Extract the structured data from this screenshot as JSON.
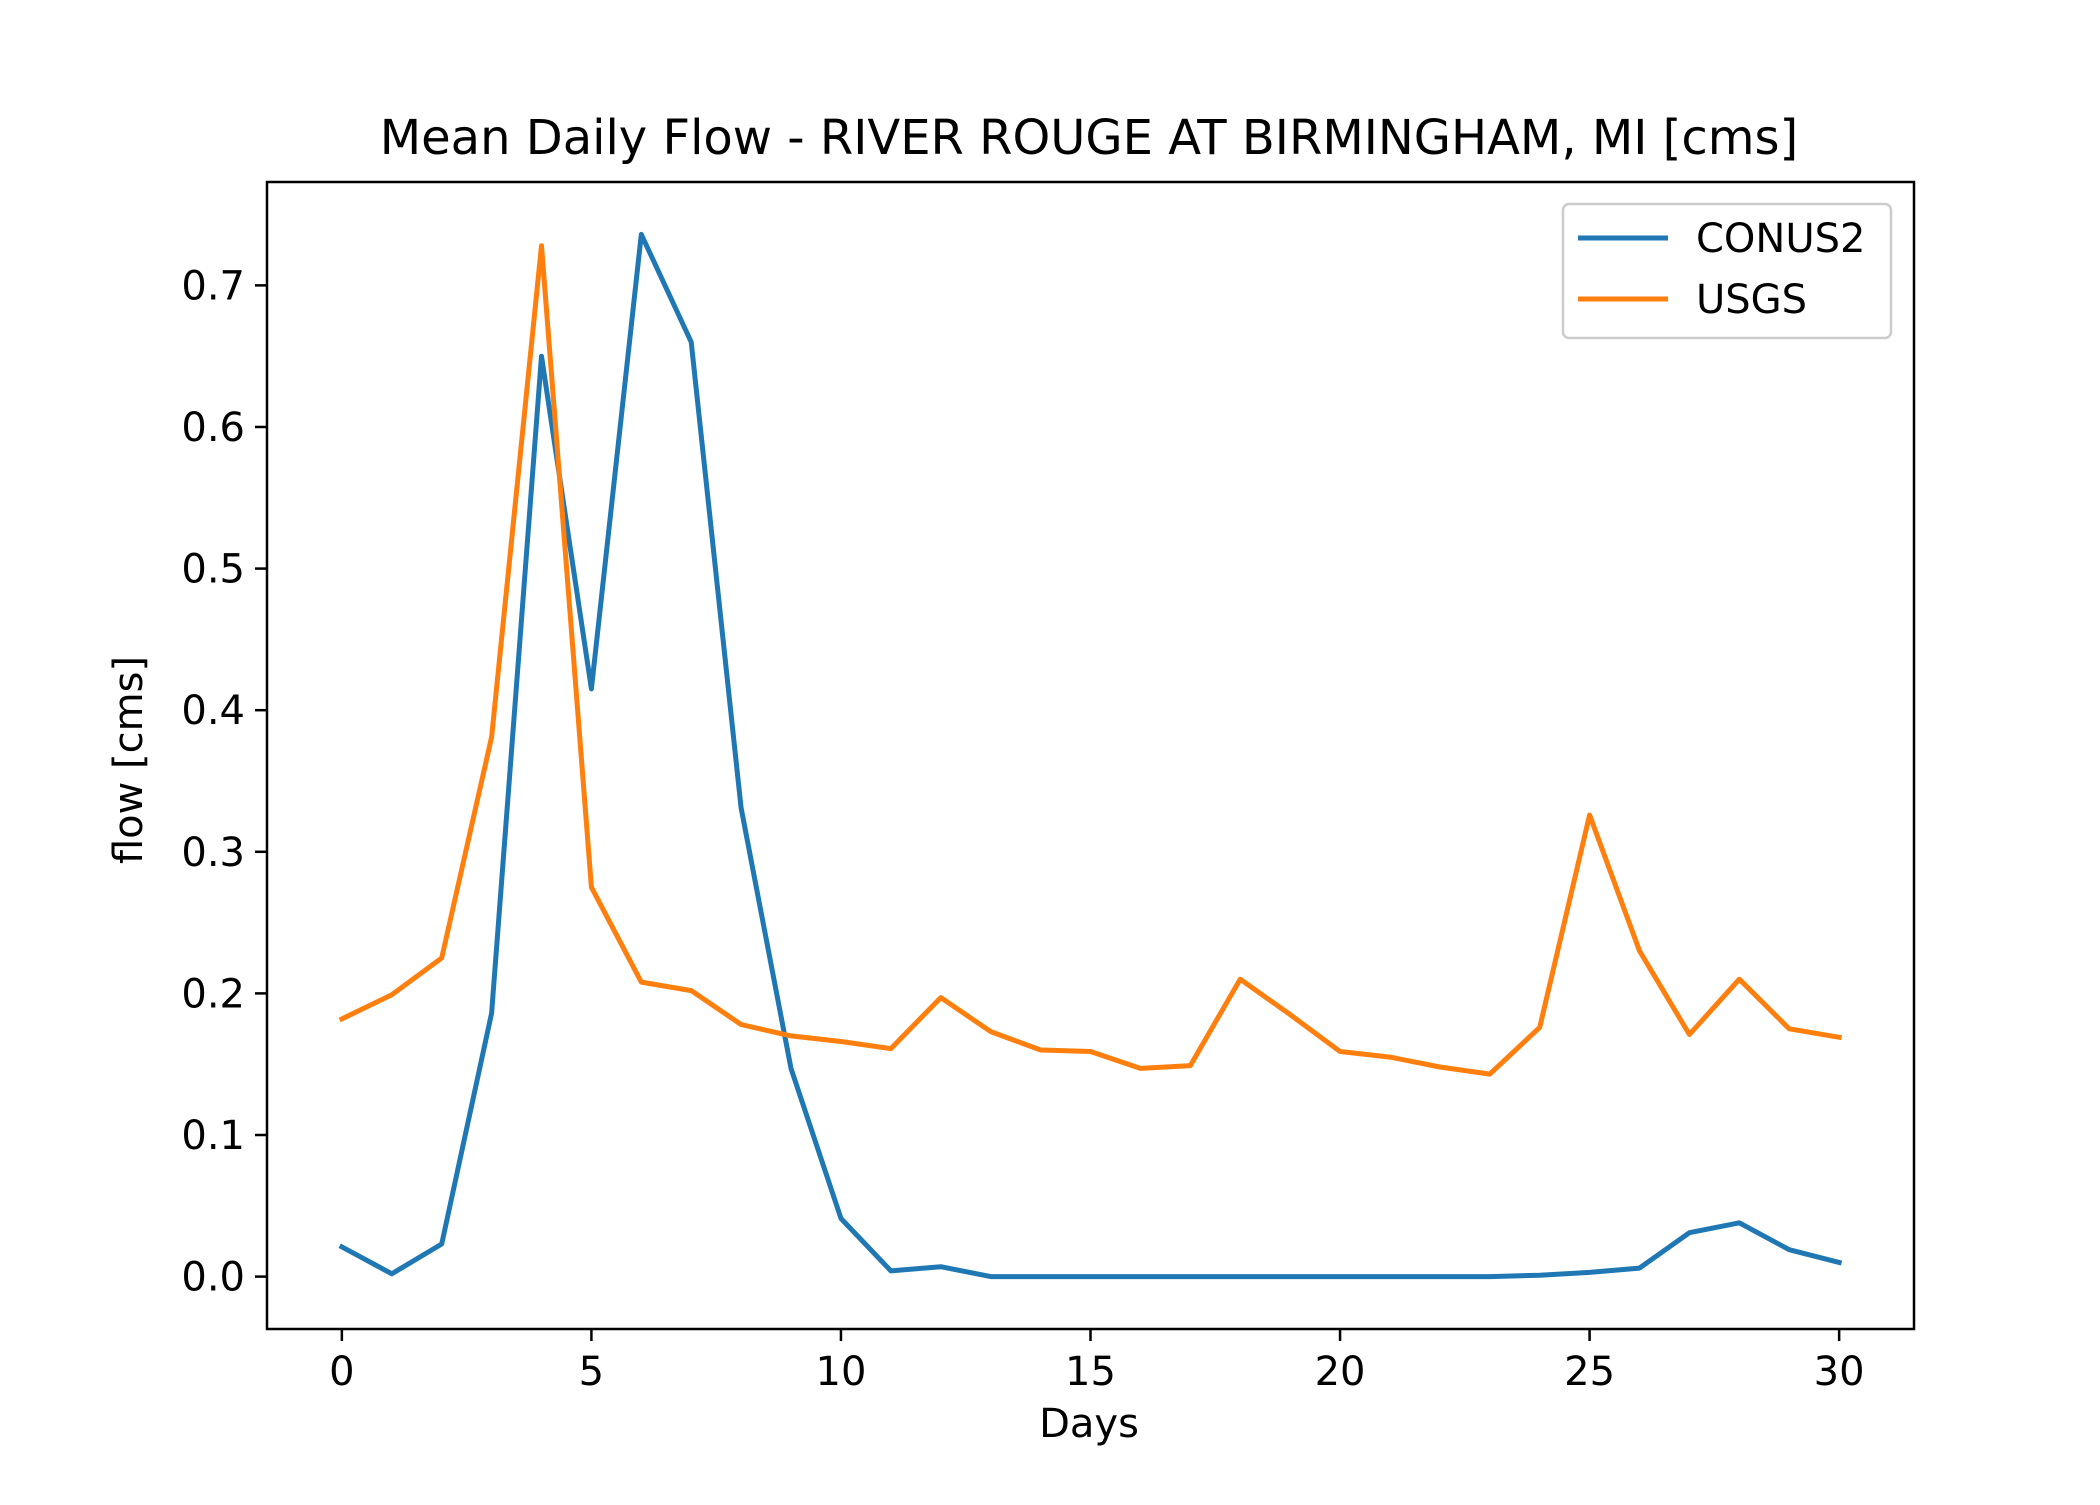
{
  "chart_data": {
    "type": "line",
    "title": "Mean Daily Flow - RIVER ROUGE AT BIRMINGHAM, MI [cms]",
    "xlabel": "Days",
    "ylabel": "flow [cms]",
    "xlim": [
      -1.5,
      31.5
    ],
    "ylim": [
      -0.037,
      0.773
    ],
    "xticks": [
      0,
      5,
      10,
      15,
      20,
      25,
      30
    ],
    "xtick_labels": [
      "0",
      "5",
      "10",
      "15",
      "20",
      "25",
      "30"
    ],
    "yticks": [
      0.0,
      0.1,
      0.2,
      0.3,
      0.4,
      0.5,
      0.6,
      0.7
    ],
    "ytick_labels": [
      "0.0",
      "0.1",
      "0.2",
      "0.3",
      "0.4",
      "0.5",
      "0.6",
      "0.7"
    ],
    "grid": false,
    "legend_position": "top-right",
    "x": [
      0,
      1,
      2,
      3,
      4,
      5,
      6,
      7,
      8,
      9,
      10,
      11,
      12,
      13,
      14,
      15,
      16,
      17,
      18,
      19,
      20,
      21,
      22,
      23,
      24,
      25,
      26,
      27,
      28,
      29,
      30
    ],
    "series": [
      {
        "name": "CONUS2",
        "color": "#1f77b4",
        "values": [
          0.021,
          0.002,
          0.023,
          0.186,
          0.65,
          0.415,
          0.736,
          0.66,
          0.331,
          0.147,
          0.041,
          0.004,
          0.007,
          0.0,
          0.0,
          0.0,
          0.0,
          0.0,
          0.0,
          0.0,
          0.0,
          0.0,
          0.0,
          0.0,
          0.001,
          0.003,
          0.006,
          0.031,
          0.038,
          0.019,
          0.01
        ]
      },
      {
        "name": "USGS",
        "color": "#ff7f0e",
        "values": [
          0.182,
          0.199,
          0.225,
          0.381,
          0.728,
          0.275,
          0.208,
          0.202,
          0.178,
          0.17,
          0.166,
          0.161,
          0.197,
          0.173,
          0.16,
          0.159,
          0.147,
          0.149,
          0.21,
          0.185,
          0.159,
          0.155,
          0.148,
          0.143,
          0.176,
          0.326,
          0.23,
          0.171,
          0.21,
          0.175,
          0.169
        ]
      }
    ]
  }
}
